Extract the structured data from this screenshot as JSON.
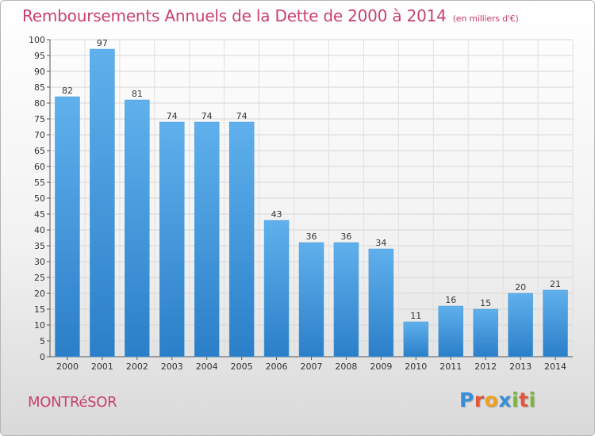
{
  "title": "Remboursements Annuels de la Dette de 2000 à 2014",
  "subtitle": "(en milliers d'€)",
  "commune": "MONTRéSOR",
  "logo": {
    "text": "Proxiti",
    "colors": [
      "#3a8ed8",
      "#e2563a",
      "#f0a020",
      "#3a8ed8",
      "#7cb83a",
      "#e2563a",
      "#7cb83a"
    ]
  },
  "colors": {
    "bar_top": "#5fb0ec",
    "bar_bottom": "#2b7fc8",
    "title": "#c8416b"
  },
  "chart_data": {
    "type": "bar",
    "categories": [
      "2000",
      "2001",
      "2002",
      "2003",
      "2004",
      "2005",
      "2006",
      "2007",
      "2008",
      "2009",
      "2010",
      "2011",
      "2012",
      "2013",
      "2014"
    ],
    "values": [
      82,
      97,
      81,
      74,
      74,
      74,
      43,
      36,
      36,
      34,
      11,
      16,
      15,
      20,
      21
    ],
    "ylim": [
      0,
      100
    ],
    "yticks": [
      0,
      5,
      10,
      15,
      20,
      25,
      30,
      35,
      40,
      45,
      50,
      55,
      60,
      65,
      70,
      75,
      80,
      85,
      90,
      95,
      100
    ],
    "grid": true
  }
}
